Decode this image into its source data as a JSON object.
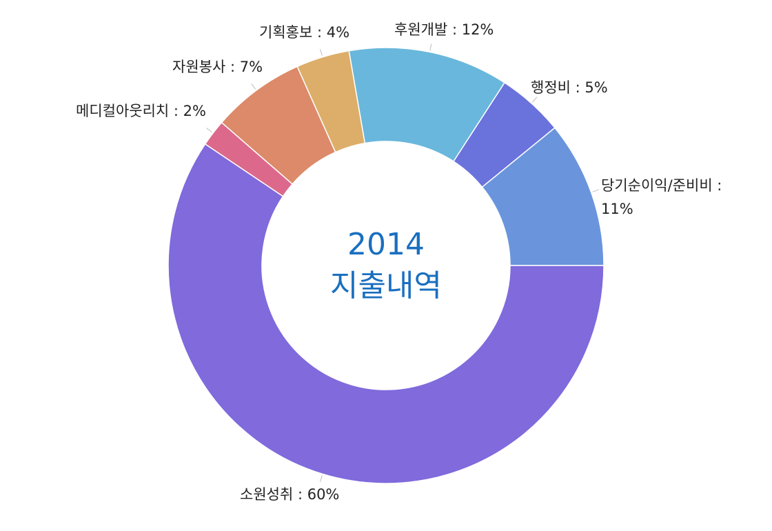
{
  "chart_data": {
    "type": "pie",
    "variant": "donut",
    "center_title_line1": "2014",
    "center_title_line2": "지출내역",
    "slices": [
      {
        "label": "당기순이익/준비비",
        "value": 11,
        "display": "당기순이익/준비비 :",
        "display2": "11%",
        "color": "#6a95dc"
      },
      {
        "label": "행정비",
        "value": 5,
        "display": "행정비 : 5%",
        "color": "#6a72dc"
      },
      {
        "label": "후원개발",
        "value": 12,
        "display": "후원개발 : 12%",
        "color": "#69b7dc"
      },
      {
        "label": "기획홍보",
        "value": 4,
        "display": "기획홍보 : 4%",
        "color": "#dcae69"
      },
      {
        "label": "자원봉사",
        "value": 7,
        "display": "자원봉사 : 7%",
        "color": "#dc8a69"
      },
      {
        "label": "메디컬아웃리치",
        "value": 2,
        "display": "메디컬아웃리치 : 2%",
        "color": "#dc698c"
      },
      {
        "label": "소원성취",
        "value": 60,
        "display": "소원성취 : 60%",
        "color": "#806adc"
      }
    ],
    "start": "3 o'clock",
    "direction": "counterclockwise",
    "legend": "none",
    "labels": "outside with leader lines"
  }
}
